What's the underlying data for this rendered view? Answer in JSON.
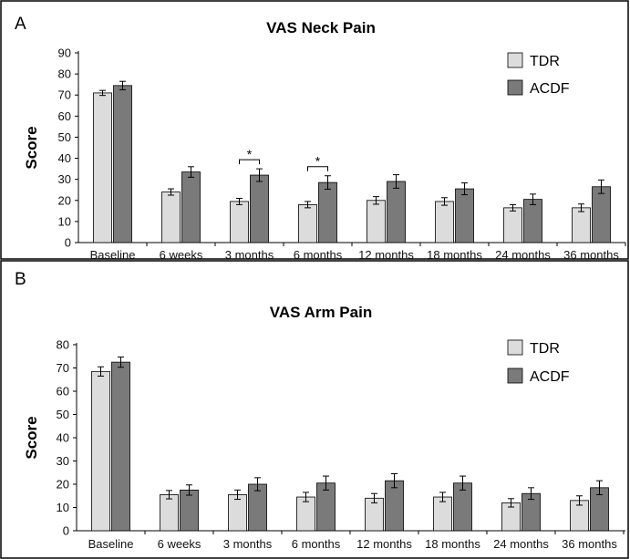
{
  "colors": {
    "TDR": "#dcdcdc",
    "ACDF": "#7a7a7a"
  },
  "chart_data": [
    {
      "panel_letter": "A",
      "type": "bar",
      "title": "VAS Neck Pain",
      "ylabel": "Score",
      "xlabel": "",
      "ylim": [
        0,
        90
      ],
      "yticks": [
        0,
        10,
        20,
        30,
        40,
        50,
        60,
        70,
        80,
        90
      ],
      "grid": false,
      "legend": "top-right",
      "categories": [
        "Baseline",
        "6 weeks",
        "3 months",
        "6 months",
        "12 months",
        "18 months",
        "24 months",
        "36 months"
      ],
      "series": [
        {
          "name": "TDR",
          "values": [
            71,
            24,
            19.5,
            18,
            20,
            19.5,
            16.5,
            16.5
          ],
          "error": [
            1.2,
            1.5,
            1.5,
            1.5,
            1.8,
            1.8,
            1.5,
            1.8
          ]
        },
        {
          "name": "ACDF",
          "values": [
            74.5,
            33.5,
            32,
            28.5,
            29,
            25.5,
            20.5,
            26.5
          ],
          "error": [
            2,
            2.5,
            3,
            3.2,
            3.2,
            2.8,
            2.5,
            3.2
          ]
        }
      ],
      "annotations": [
        {
          "category": "3 months",
          "text": "*"
        },
        {
          "category": "6 months",
          "text": "*"
        }
      ]
    },
    {
      "panel_letter": "B",
      "type": "bar",
      "title": "VAS Arm Pain",
      "ylabel": "Score",
      "xlabel": "",
      "ylim": [
        0,
        80
      ],
      "yticks": [
        0,
        10,
        20,
        30,
        40,
        50,
        60,
        70,
        80
      ],
      "grid": false,
      "legend": "top-right",
      "categories": [
        "Baseline",
        "6 weeks",
        "3 months",
        "6 months",
        "12 months",
        "18 months",
        "24 months",
        "36 months"
      ],
      "series": [
        {
          "name": "TDR",
          "values": [
            68.5,
            15.5,
            15.5,
            14.5,
            14,
            14.5,
            12,
            13
          ],
          "error": [
            2,
            1.8,
            2,
            2,
            2,
            2,
            1.8,
            2
          ]
        },
        {
          "name": "ACDF",
          "values": [
            72.5,
            17.5,
            20,
            20.5,
            21.5,
            20.5,
            16,
            18.5
          ],
          "error": [
            2.2,
            2.2,
            2.8,
            3,
            3,
            3,
            2.5,
            3
          ]
        }
      ],
      "annotations": []
    }
  ]
}
